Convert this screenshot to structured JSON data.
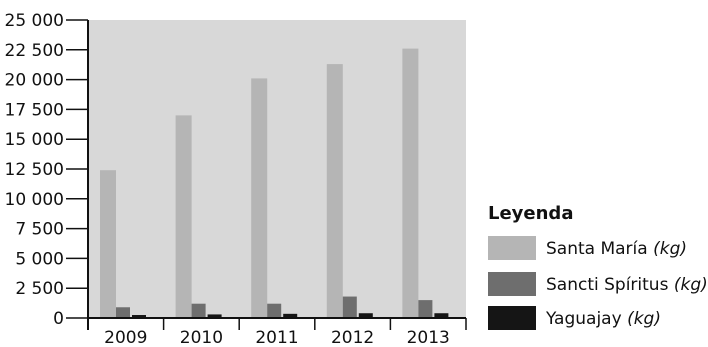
{
  "chart_data": {
    "type": "bar",
    "categories": [
      "2009",
      "2010",
      "2011",
      "2012",
      "2013"
    ],
    "series": [
      {
        "name": "Santa María",
        "unit": "(kg)",
        "values": [
          12400,
          17000,
          20100,
          21300,
          22600
        ]
      },
      {
        "name": "Sancti Spíritus",
        "unit": "(kg)",
        "values": [
          900,
          1200,
          1200,
          1800,
          1500
        ]
      },
      {
        "name": "Yaguajay",
        "unit": "(kg)",
        "values": [
          250,
          300,
          350,
          400,
          400
        ]
      }
    ],
    "ylim": [
      0,
      25000
    ],
    "yticks": [
      "0",
      "2 500",
      "5 000",
      "7 500",
      "10 000",
      "12 500",
      "15 000",
      "17 500",
      "20 000",
      "22 500",
      "25 000"
    ],
    "ytick_values": [
      0,
      2500,
      5000,
      7500,
      10000,
      12500,
      15000,
      17500,
      20000,
      22500,
      25000
    ],
    "legend": {
      "title": "Leyenda",
      "placement": "right"
    },
    "grid": false,
    "colors": {
      "plot_background": "#d8d8d8",
      "series": [
        "#b5b5b5",
        "#6e6e6e",
        "#151515"
      ],
      "axis": "#111111"
    }
  }
}
